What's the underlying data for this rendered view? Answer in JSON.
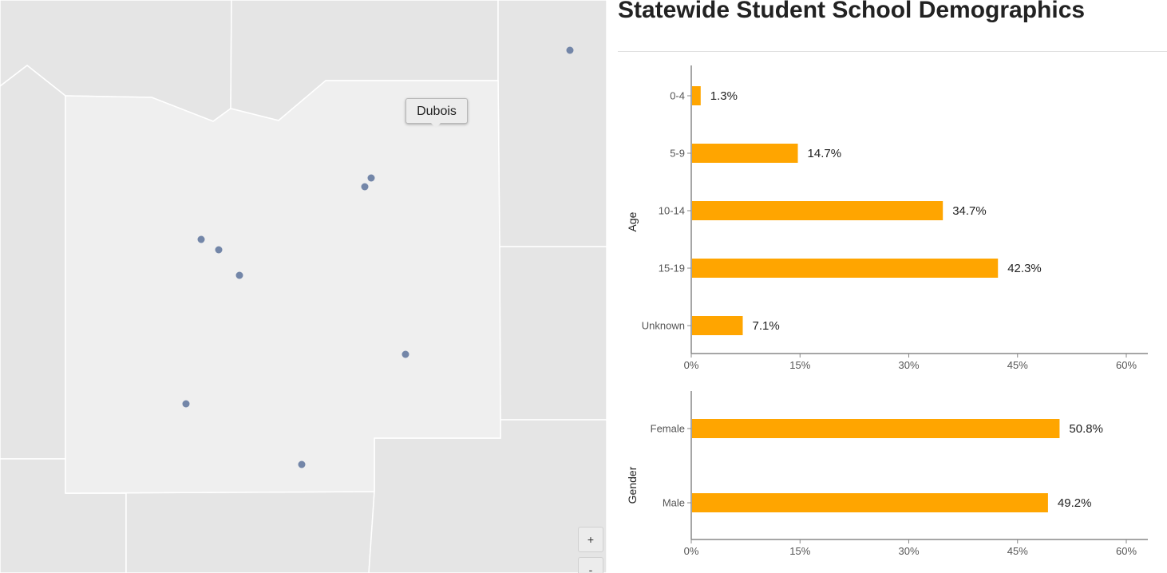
{
  "map": {
    "tooltip": "Dubois",
    "zoom_in_label": "+",
    "zoom_out_label": "-",
    "colors": {
      "county": "#e5e5e5",
      "selected_county": "#efefef",
      "border": "#ffffff",
      "school_dot": "#7386a8"
    },
    "school_count_visible": 10
  },
  "title": "Statewide Student School Demographics",
  "bar_color": "#ffa500",
  "chart_data": [
    {
      "type": "bar",
      "orientation": "horizontal",
      "ylabel": "Age",
      "categories": [
        "0-4",
        "5-9",
        "10-14",
        "15-19",
        "Unknown"
      ],
      "values": [
        1.3,
        14.7,
        34.7,
        42.3,
        7.1
      ],
      "value_labels": [
        "1.3%",
        "14.7%",
        "34.7%",
        "42.3%",
        "7.1%"
      ],
      "xlim": [
        0,
        60
      ],
      "ticks": [
        0,
        15,
        30,
        45,
        60
      ],
      "tick_labels": [
        "0%",
        "15%",
        "30%",
        "45%",
        "60%"
      ]
    },
    {
      "type": "bar",
      "orientation": "horizontal",
      "ylabel": "Gender",
      "categories": [
        "Female",
        "Male"
      ],
      "values": [
        50.8,
        49.2
      ],
      "value_labels": [
        "50.8%",
        "49.2%"
      ],
      "xlim": [
        0,
        60
      ],
      "ticks": [
        0,
        15,
        30,
        45,
        60
      ],
      "tick_labels": [
        "0%",
        "15%",
        "30%",
        "45%",
        "60%"
      ]
    }
  ]
}
